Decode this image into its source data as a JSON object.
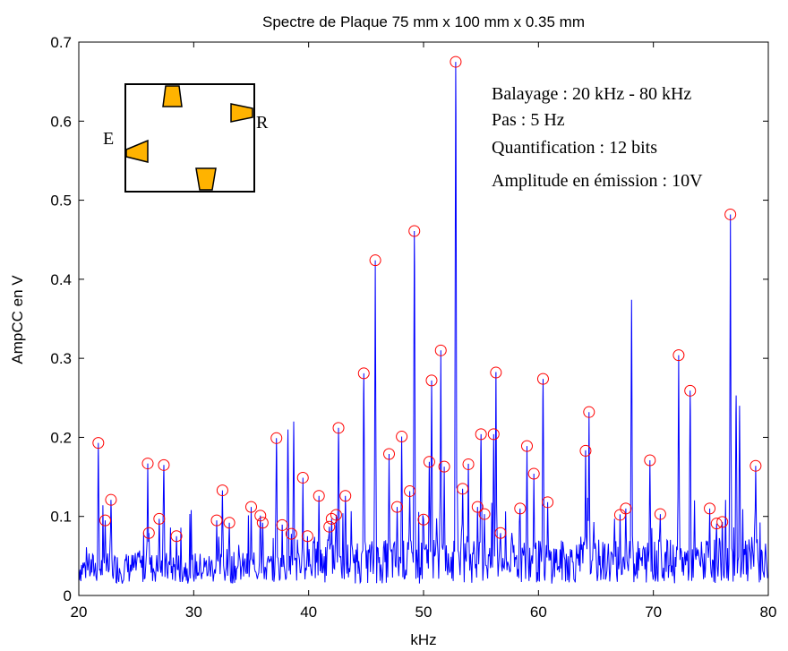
{
  "chart_data": {
    "type": "line",
    "title": "Spectre de Plaque 75 mm x 100 mm x 0.35 mm",
    "xlabel": "kHz",
    "ylabel": "AmpCC en V",
    "xlim": [
      20,
      80
    ],
    "ylim": [
      0,
      0.7
    ],
    "xticks": [
      20,
      30,
      40,
      50,
      60,
      70,
      80
    ],
    "yticks": [
      0,
      0.1,
      0.2,
      0.3,
      0.4,
      0.5,
      0.6,
      0.7
    ],
    "grid": false,
    "line_color": "#0000ff",
    "marker_color": "#ff0000",
    "baseline": 0.015,
    "peaks": [
      {
        "x": 21.7,
        "y": 0.193
      },
      {
        "x": 22.3,
        "y": 0.095
      },
      {
        "x": 22.8,
        "y": 0.121
      },
      {
        "x": 26.0,
        "y": 0.167
      },
      {
        "x": 26.1,
        "y": 0.079
      },
      {
        "x": 27.0,
        "y": 0.097
      },
      {
        "x": 27.4,
        "y": 0.165
      },
      {
        "x": 28.5,
        "y": 0.075
      },
      {
        "x": 32.0,
        "y": 0.095
      },
      {
        "x": 32.5,
        "y": 0.133
      },
      {
        "x": 33.1,
        "y": 0.092
      },
      {
        "x": 35.0,
        "y": 0.112
      },
      {
        "x": 35.8,
        "y": 0.101
      },
      {
        "x": 36.0,
        "y": 0.092
      },
      {
        "x": 37.2,
        "y": 0.199
      },
      {
        "x": 37.7,
        "y": 0.089
      },
      {
        "x": 38.5,
        "y": 0.078
      },
      {
        "x": 39.5,
        "y": 0.149
      },
      {
        "x": 39.9,
        "y": 0.075
      },
      {
        "x": 40.9,
        "y": 0.126
      },
      {
        "x": 41.8,
        "y": 0.087
      },
      {
        "x": 42.0,
        "y": 0.097
      },
      {
        "x": 42.4,
        "y": 0.102
      },
      {
        "x": 42.6,
        "y": 0.212
      },
      {
        "x": 43.2,
        "y": 0.126
      },
      {
        "x": 44.8,
        "y": 0.281
      },
      {
        "x": 45.8,
        "y": 0.424
      },
      {
        "x": 47.0,
        "y": 0.179
      },
      {
        "x": 47.7,
        "y": 0.112
      },
      {
        "x": 48.1,
        "y": 0.201
      },
      {
        "x": 48.8,
        "y": 0.132
      },
      {
        "x": 49.2,
        "y": 0.461
      },
      {
        "x": 50.0,
        "y": 0.096
      },
      {
        "x": 50.5,
        "y": 0.169
      },
      {
        "x": 50.7,
        "y": 0.272
      },
      {
        "x": 51.5,
        "y": 0.31
      },
      {
        "x": 51.8,
        "y": 0.163
      },
      {
        "x": 52.8,
        "y": 0.675
      },
      {
        "x": 53.4,
        "y": 0.135
      },
      {
        "x": 53.9,
        "y": 0.166
      },
      {
        "x": 54.7,
        "y": 0.112
      },
      {
        "x": 55.0,
        "y": 0.204
      },
      {
        "x": 55.3,
        "y": 0.103
      },
      {
        "x": 56.1,
        "y": 0.204
      },
      {
        "x": 56.3,
        "y": 0.282
      },
      {
        "x": 56.7,
        "y": 0.079
      },
      {
        "x": 58.4,
        "y": 0.11
      },
      {
        "x": 59.0,
        "y": 0.189
      },
      {
        "x": 59.6,
        "y": 0.154
      },
      {
        "x": 60.4,
        "y": 0.274
      },
      {
        "x": 60.8,
        "y": 0.118
      },
      {
        "x": 64.1,
        "y": 0.183
      },
      {
        "x": 64.4,
        "y": 0.232
      },
      {
        "x": 67.1,
        "y": 0.102
      },
      {
        "x": 67.6,
        "y": 0.11
      },
      {
        "x": 69.7,
        "y": 0.171
      },
      {
        "x": 70.6,
        "y": 0.103
      },
      {
        "x": 72.2,
        "y": 0.304
      },
      {
        "x": 73.2,
        "y": 0.259
      },
      {
        "x": 74.9,
        "y": 0.11
      },
      {
        "x": 75.5,
        "y": 0.091
      },
      {
        "x": 76.0,
        "y": 0.093
      },
      {
        "x": 76.7,
        "y": 0.482
      },
      {
        "x": 78.9,
        "y": 0.164
      }
    ],
    "unmarked_peaks": [
      {
        "x": 38.2,
        "y": 0.21
      },
      {
        "x": 38.7,
        "y": 0.22
      },
      {
        "x": 68.1,
        "y": 0.374
      },
      {
        "x": 77.2,
        "y": 0.253
      },
      {
        "x": 77.5,
        "y": 0.24
      }
    ],
    "annotations": [
      "Balayage : 20 kHz - 80 kHz",
      "Pas : 5 Hz",
      "Quantification : 12 bits",
      "Amplitude en émission : 10V"
    ],
    "inset": {
      "labels": [
        "E",
        "R"
      ],
      "fill_color": "#ffb300"
    }
  }
}
